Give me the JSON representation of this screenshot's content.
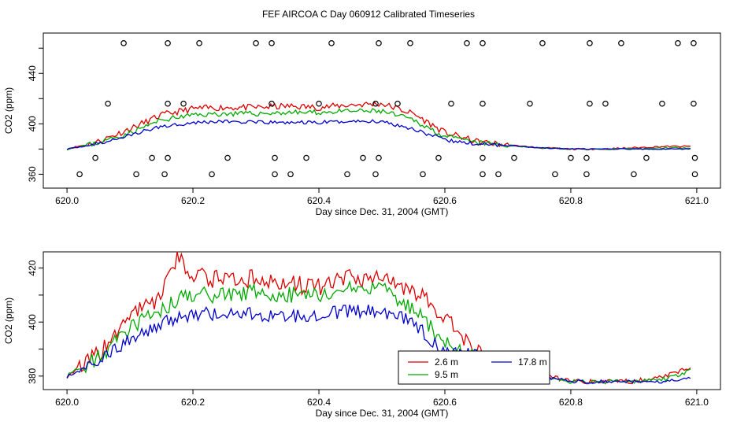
{
  "figure_title": "FEF AIRCOA C  Day 060912  Calibrated Timeseries",
  "colors": {
    "c2_6": "#dd0000",
    "c9_5": "#00aa00",
    "c17_8": "#0000cc",
    "axis": "#000000"
  },
  "chart_data": [
    {
      "type": "line",
      "title": "",
      "xlabel": "Day since Dec. 31, 2004 (GMT)",
      "ylabel": "CO2 (ppm)",
      "xlim": [
        620.0,
        621.0
      ],
      "ylim": [
        349,
        472
      ],
      "x_ticks": [
        "620.0",
        "620.2",
        "620.4",
        "620.6",
        "620.8",
        "621.0"
      ],
      "y_ticks": [
        "360",
        "400",
        "440"
      ],
      "y_tick_values": [
        360,
        400,
        440
      ],
      "y_minor_ticks": [
        380,
        420,
        460
      ],
      "knots": {
        "x": [
          620.0,
          620.05,
          620.1,
          620.15,
          620.2,
          620.25,
          620.3,
          620.35,
          620.4,
          620.45,
          620.5,
          620.55,
          620.6,
          620.65,
          620.7,
          620.75,
          620.8,
          620.85,
          620.9,
          620.95,
          620.99
        ],
        "s2_6": [
          380,
          386,
          396,
          407,
          412,
          413,
          413,
          414,
          413,
          415,
          416,
          408,
          393,
          386,
          383,
          381,
          380,
          380,
          381,
          382,
          382
        ],
        "s9_5": [
          380,
          385,
          393,
          403,
          407,
          408,
          408,
          409,
          409,
          410,
          410,
          403,
          390,
          385,
          383,
          381,
          380,
          380,
          380,
          381,
          381
        ],
        "s17_8": [
          380,
          384,
          391,
          398,
          401,
          402,
          401,
          401,
          401,
          402,
          402,
          396,
          387,
          384,
          383,
          381,
          380,
          380,
          380,
          380,
          380
        ]
      },
      "scatter_y_values": [
        464,
        416,
        373,
        360
      ],
      "scatter": {
        "x": [
          620.09,
          620.16,
          620.21,
          620.3,
          620.325,
          620.42,
          620.495,
          620.545,
          620.635,
          620.66,
          620.755,
          620.83,
          620.88,
          620.97,
          620.995,
          620.065,
          620.16,
          620.185,
          620.325,
          620.4,
          620.49,
          620.525,
          620.61,
          620.66,
          620.735,
          620.83,
          620.855,
          620.945,
          620.995,
          620.045,
          620.135,
          620.16,
          620.255,
          620.33,
          620.38,
          620.47,
          620.495,
          620.59,
          620.66,
          620.71,
          620.8,
          620.825,
          620.92,
          620.997,
          620.02,
          620.11,
          620.155,
          620.23,
          620.33,
          620.355,
          620.445,
          620.49,
          620.565,
          620.66,
          620.685,
          620.775,
          620.825,
          620.9,
          620.997
        ],
        "y": [
          464,
          464,
          464,
          464,
          464,
          464,
          464,
          464,
          464,
          464,
          464,
          464,
          464,
          464,
          464,
          416,
          416,
          416,
          416,
          416,
          416,
          416,
          416,
          416,
          416,
          416,
          416,
          416,
          416,
          373,
          373,
          373,
          373,
          373,
          373,
          373,
          373,
          373,
          373,
          373,
          373,
          373,
          373,
          373,
          360,
          360,
          360,
          360,
          360,
          360,
          360,
          360,
          360,
          360,
          360,
          360,
          360,
          360,
          360
        ]
      }
    },
    {
      "type": "line",
      "title": "",
      "xlabel": "Day since Dec. 31, 2004 (GMT)",
      "ylabel": "CO2 (ppm)",
      "xlim": [
        620.0,
        621.0
      ],
      "ylim": [
        375,
        426
      ],
      "x_ticks": [
        "620.0",
        "620.2",
        "620.4",
        "620.6",
        "620.8",
        "621.0"
      ],
      "y_ticks": [
        "380",
        "400",
        "420"
      ],
      "y_tick_values": [
        380,
        400,
        420
      ],
      "y_minor_ticks": [
        390,
        410
      ],
      "legend_position": "bottom-center",
      "series": [
        {
          "name": "2.6 m",
          "key": "c2_6"
        },
        {
          "name": "9.5 m",
          "key": "c9_5"
        },
        {
          "name": "17.8 m",
          "key": "c17_8"
        }
      ],
      "knots": {
        "x": [
          620.0,
          620.05,
          620.1,
          620.15,
          620.175,
          620.2,
          620.25,
          620.3,
          620.35,
          620.4,
          620.45,
          620.5,
          620.55,
          620.6,
          620.65,
          620.7,
          620.75,
          620.8,
          620.85,
          620.9,
          620.95,
          620.99
        ],
        "s2_6": [
          380,
          388,
          402,
          410,
          423,
          418,
          415,
          416,
          414,
          413,
          416,
          417,
          412,
          402,
          389,
          383,
          381,
          378,
          378,
          378,
          380,
          383
        ],
        "s9_5": [
          380,
          387,
          398,
          404,
          408,
          410,
          410,
          411,
          410,
          410,
          412,
          412,
          405,
          392,
          387,
          382,
          380,
          378,
          378,
          378,
          379,
          382
        ],
        "s17_8": [
          380,
          385,
          394,
          399,
          402,
          403,
          403,
          403,
          402,
          403,
          404,
          404,
          400,
          388,
          388,
          382,
          380,
          378,
          378,
          378,
          378,
          379
        ]
      }
    }
  ]
}
